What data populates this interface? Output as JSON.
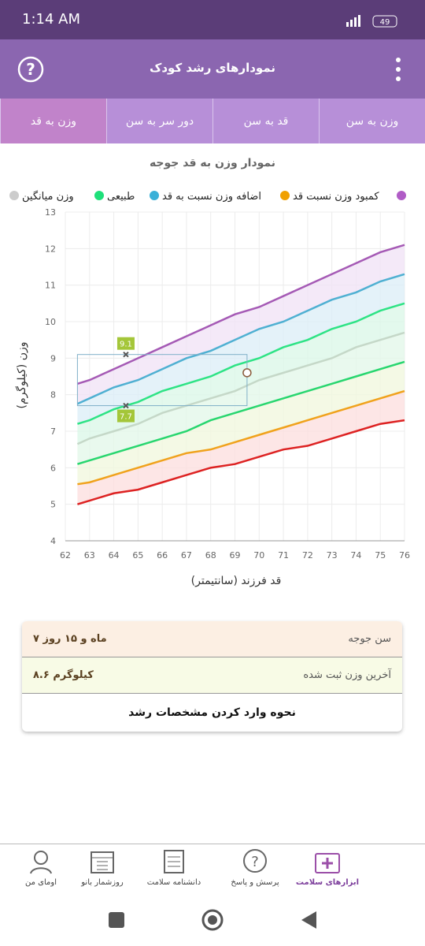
{
  "status_bar": {
    "time": "1:14 AM",
    "battery": "49"
  },
  "header": {
    "title": "نمودارهای رشد کودک"
  },
  "tabs": [
    "وزن به سن",
    "قد به سن",
    "دور سر به سن",
    "وزن به قد"
  ],
  "active_tab": 3,
  "chart_data": {
    "type": "line",
    "title": "نمودار وزن به قد جوجه",
    "x_label": "قد فرزند (سانتیمتر)",
    "y_label": "وزن (کیلوگرم)",
    "x": [
      62.5,
      63,
      64,
      65,
      66,
      67,
      68,
      69,
      70,
      71,
      72,
      73,
      74,
      75,
      76
    ],
    "series": [
      {
        "color": "#a55ab5",
        "fill": "#f1e3f6",
        "values": [
          8.3,
          8.4,
          8.7,
          9.0,
          9.3,
          9.6,
          9.9,
          10.2,
          10.4,
          10.7,
          11.0,
          11.3,
          11.6,
          11.9,
          12.1
        ]
      },
      {
        "name": "اضافه وزن نسبت به قد",
        "color": "#4fb0d2",
        "fill": "#ddeff7",
        "values": [
          7.75,
          7.9,
          8.2,
          8.4,
          8.7,
          9.0,
          9.2,
          9.5,
          9.8,
          10.0,
          10.3,
          10.6,
          10.8,
          11.1,
          11.3
        ]
      },
      {
        "name": "طبیعی",
        "color": "#2ee385",
        "fill": "#dcf8e8",
        "values": [
          7.2,
          7.3,
          7.6,
          7.8,
          8.1,
          8.3,
          8.5,
          8.8,
          9.0,
          9.3,
          9.5,
          9.8,
          10.0,
          10.3,
          10.5
        ]
      },
      {
        "name": "وزن میانگین",
        "color": "#c5d8c8",
        "fill": "#e4f8ea",
        "values": [
          6.65,
          6.8,
          7.0,
          7.2,
          7.5,
          7.7,
          7.9,
          8.1,
          8.4,
          8.6,
          8.8,
          9.0,
          9.3,
          9.5,
          9.7
        ]
      },
      {
        "color": "#28d66f",
        "fill": "#f1f8de",
        "values": [
          6.1,
          6.2,
          6.4,
          6.6,
          6.8,
          7.0,
          7.3,
          7.5,
          7.7,
          7.9,
          8.1,
          8.3,
          8.5,
          8.7,
          8.9
        ]
      },
      {
        "name": "کمبود وزن نسبت قد",
        "color": "#f0a21c",
        "fill": "#fde0e0",
        "values": [
          5.55,
          5.6,
          5.8,
          6.0,
          6.2,
          6.4,
          6.5,
          6.7,
          6.9,
          7.1,
          7.3,
          7.5,
          7.7,
          7.9,
          8.1
        ]
      },
      {
        "color": "#dd2222",
        "values": [
          5.0,
          5.1,
          5.3,
          5.4,
          5.6,
          5.8,
          6.0,
          6.1,
          6.3,
          6.5,
          6.6,
          6.8,
          7.0,
          7.2,
          7.3
        ]
      }
    ],
    "legend_colors": [
      "#b05cc6",
      "#f0a000",
      "#3ab0d8",
      "#1ee07a",
      "#cccccc"
    ],
    "legend_order": [
      null,
      5,
      1,
      2,
      3
    ],
    "markers": [
      {
        "x": 64.5,
        "y": 9.1
      },
      {
        "x": 64.5,
        "y": 7.7
      }
    ],
    "child_point": {
      "x": 69.5,
      "y": 8.6
    },
    "xlim": [
      62,
      76
    ],
    "xticks": [
      62,
      63,
      64,
      65,
      66,
      67,
      68,
      69,
      70,
      71,
      72,
      73,
      74,
      75,
      76
    ],
    "ylim": [
      4,
      13
    ],
    "yticks": [
      4,
      5,
      6,
      7,
      8,
      9,
      10,
      11,
      12,
      13
    ],
    "grid": true
  },
  "info": {
    "rows": [
      {
        "label": "سن جوجه",
        "value": "۷ ماه و ۱۵ روز"
      },
      {
        "label": "آخرین وزن ثبت شده",
        "value": "۸.۶ کیلوگرم"
      }
    ],
    "link": "نحوه وارد کردن مشخصات رشد"
  },
  "bottom_nav": [
    "ابزارهای سلامت",
    "پرسش و پاسخ",
    "دانشنامه سلامت",
    "روزشمار بانو",
    "اومای من"
  ]
}
